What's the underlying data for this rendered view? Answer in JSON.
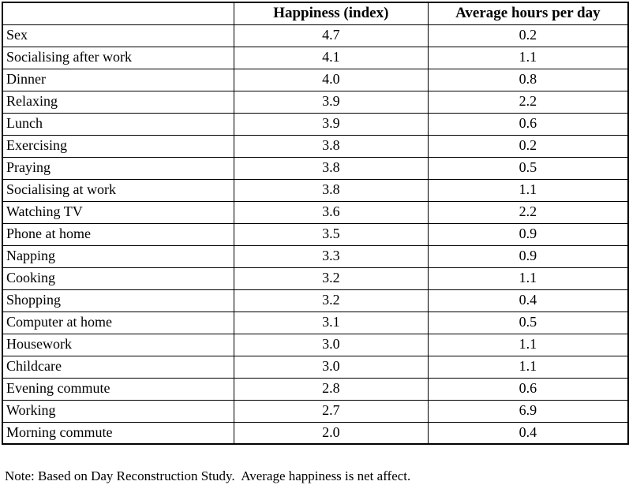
{
  "table": {
    "columns": [
      "",
      "Happiness (index)",
      "Average hours per day"
    ],
    "rows": [
      {
        "activity": "Sex",
        "happiness": "4.7",
        "hours": "0.2"
      },
      {
        "activity": "Socialising after work",
        "happiness": "4.1",
        "hours": "1.1"
      },
      {
        "activity": "Dinner",
        "happiness": "4.0",
        "hours": "0.8"
      },
      {
        "activity": "Relaxing",
        "happiness": "3.9",
        "hours": "2.2"
      },
      {
        "activity": "Lunch",
        "happiness": "3.9",
        "hours": "0.6"
      },
      {
        "activity": "Exercising",
        "happiness": "3.8",
        "hours": "0.2"
      },
      {
        "activity": "Praying",
        "happiness": "3.8",
        "hours": "0.5"
      },
      {
        "activity": "Socialising at work",
        "happiness": "3.8",
        "hours": "1.1"
      },
      {
        "activity": "Watching TV",
        "happiness": "3.6",
        "hours": "2.2"
      },
      {
        "activity": "Phone at home",
        "happiness": "3.5",
        "hours": "0.9"
      },
      {
        "activity": "Napping",
        "happiness": "3.3",
        "hours": "0.9"
      },
      {
        "activity": "Cooking",
        "happiness": "3.2",
        "hours": "1.1"
      },
      {
        "activity": "Shopping",
        "happiness": "3.2",
        "hours": "0.4"
      },
      {
        "activity": "Computer at home",
        "happiness": "3.1",
        "hours": "0.5"
      },
      {
        "activity": "Housework",
        "happiness": "3.0",
        "hours": "1.1"
      },
      {
        "activity": "Childcare",
        "happiness": "3.0",
        "hours": "1.1"
      },
      {
        "activity": "Evening commute",
        "happiness": "2.8",
        "hours": "0.6"
      },
      {
        "activity": "Working",
        "happiness": "2.7",
        "hours": "6.9"
      },
      {
        "activity": "Morning commute",
        "happiness": "2.0",
        "hours": "0.4"
      }
    ]
  },
  "note": "Note: Based on Day Reconstruction Study.  Average happiness is net affect."
}
